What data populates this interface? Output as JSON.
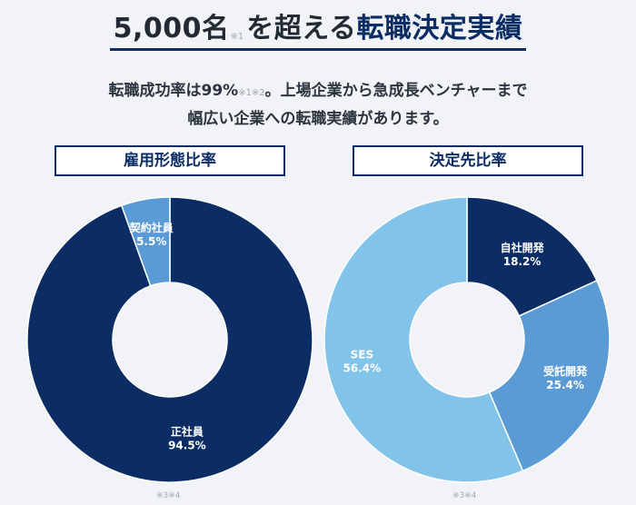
{
  "header": {
    "title_main": "5,000名",
    "title_note": "※1",
    "title_mid": "を超える",
    "title_accent": "転職決定実績"
  },
  "subtext": {
    "line1_a": "転職成功率は99%",
    "line1_note": "※1※2",
    "line1_b": "。上場企業から急成長ベンチャーまで",
    "line2": "幅広い企業への転職実績があります。"
  },
  "chart_data": [
    {
      "type": "pie",
      "title": "雇用形態比率",
      "hole": true,
      "slices": [
        {
          "label": "正社員",
          "value": 94.5,
          "value_text": "94.5%",
          "color": "#0b2d63"
        },
        {
          "label": "契約社員",
          "value": 5.5,
          "value_text": "5.5%",
          "color": "#5b9bd5"
        }
      ],
      "footnote": "※3※4"
    },
    {
      "type": "pie",
      "title": "決定先比率",
      "hole": true,
      "slices": [
        {
          "label": "自社開発",
          "value": 18.2,
          "value_text": "18.2%",
          "color": "#0b2d63"
        },
        {
          "label": "受託開発",
          "value": 25.4,
          "value_text": "25.4%",
          "color": "#5b9bd5"
        },
        {
          "label": "SES",
          "value": 56.4,
          "value_text": "56.4%",
          "color": "#82c4e9"
        }
      ],
      "footnote": "※3※4"
    }
  ]
}
